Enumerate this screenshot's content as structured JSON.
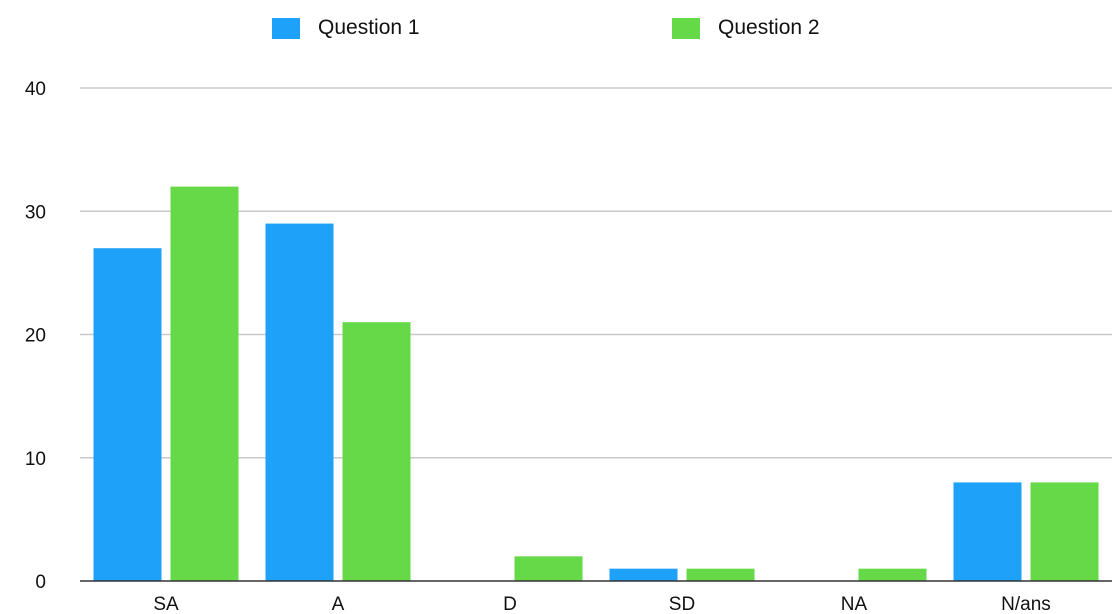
{
  "chart_data": {
    "type": "bar",
    "categories": [
      "SA",
      "A",
      "D",
      "SD",
      "NA",
      "N/ans"
    ],
    "series": [
      {
        "name": "Question 1",
        "color": "#1da1f9",
        "values": [
          27,
          29,
          0,
          1,
          0,
          8
        ]
      },
      {
        "name": "Question 2",
        "color": "#66d948",
        "values": [
          32,
          21,
          2,
          1,
          1,
          8
        ]
      }
    ],
    "ylim": [
      0,
      40
    ],
    "yticks": [
      0,
      10,
      20,
      30,
      40
    ],
    "grid": true,
    "legend": "top-center"
  }
}
